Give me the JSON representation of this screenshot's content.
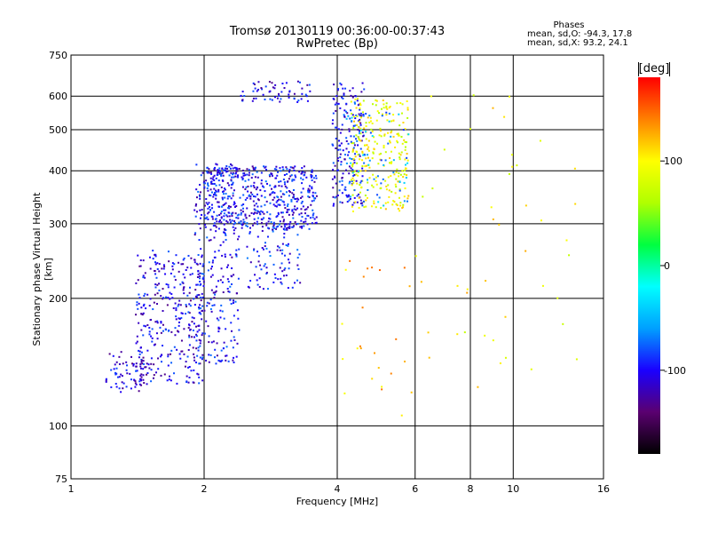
{
  "title": "Tromsø 20130119 00:36:00-00:37:43",
  "subtitle": "RwPretec (Bp)",
  "stats": {
    "heading": "Phases",
    "o_line": "mean, sd,O: -94.3, 17.8",
    "x_line": "mean, sd,X:  93.2, 24.1"
  },
  "chart_data": {
    "type": "scatter",
    "xlabel": "Frequency [MHz]",
    "ylabel": "Stationary phase Virtual Height [km]",
    "xscale": "log",
    "yscale": "log",
    "xlim": [
      1,
      16
    ],
    "ylim": [
      75,
      750
    ],
    "x_ticks": [
      1,
      2,
      4,
      6,
      8,
      10,
      16
    ],
    "y_ticks": [
      75,
      100,
      200,
      300,
      400,
      500,
      600,
      750
    ],
    "grid_x": [
      2,
      4,
      6,
      8,
      10
    ],
    "grid_y": [
      100,
      200,
      300,
      400,
      500,
      600
    ],
    "colorbar": {
      "unit": "[deg]",
      "range": [
        -180,
        180
      ],
      "ticks": [
        -100,
        0,
        100
      ],
      "colormap": [
        "#000000",
        "#5a0070",
        "#1a00ff",
        "#00a0ff",
        "#00ffff",
        "#00ff40",
        "#b0ff00",
        "#ffff00",
        "#ff8000",
        "#ff0000"
      ]
    },
    "clusters": [
      {
        "x": [
          1.2,
          1.5
        ],
        "y": [
          120,
          150
        ],
        "phase": -110,
        "n": 70
      },
      {
        "x": [
          1.4,
          2.0
        ],
        "y": [
          125,
          260
        ],
        "phase": -105,
        "n": 320
      },
      {
        "x": [
          1.9,
          2.4
        ],
        "y": [
          140,
          420
        ],
        "phase": -100,
        "n": 280
      },
      {
        "x": [
          2.0,
          3.6
        ],
        "y": [
          290,
          410
        ],
        "phase": -100,
        "n": 520
      },
      {
        "x": [
          2.4,
          3.5
        ],
        "y": [
          580,
          650
        ],
        "phase": -105,
        "n": 60
      },
      {
        "x": [
          2.5,
          3.3
        ],
        "y": [
          210,
          300
        ],
        "phase": -95,
        "n": 90
      },
      {
        "x": [
          3.9,
          4.6
        ],
        "y": [
          330,
          650
        ],
        "phase": -100,
        "n": 180
      },
      {
        "x": [
          4.3,
          5.8
        ],
        "y": [
          320,
          600
        ],
        "phase": 90,
        "n": 260
      },
      {
        "x": [
          4.2,
          5.8
        ],
        "y": [
          330,
          550
        ],
        "phase": -60,
        "n": 70
      },
      {
        "x": [
          6.0,
          14.0
        ],
        "y": [
          120,
          650
        ],
        "phase": 100,
        "n": 45
      },
      {
        "x": [
          4.0,
          6.0
        ],
        "y": [
          100,
          250
        ],
        "phase": 120,
        "n": 25
      }
    ]
  }
}
